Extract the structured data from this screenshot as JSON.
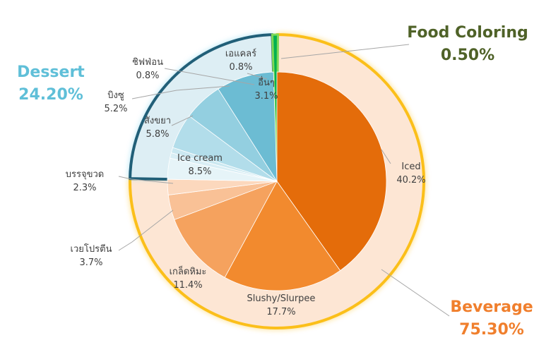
{
  "chart_data": {
    "type": "pie",
    "groups": [
      {
        "name": "Dessert",
        "percent": "24.20%",
        "color": "#4bacc6"
      },
      {
        "name": "Food Coloring",
        "percent": "0.50%",
        "color": "#4f6228"
      },
      {
        "name": "Beverage",
        "percent": "75.30%",
        "color": "#f07f2d"
      }
    ],
    "group_values": [
      24.2,
      0.5,
      75.3
    ],
    "slices": [
      {
        "label": "Iced",
        "value": 40.2,
        "value_label": "40.2%",
        "group": "Beverage",
        "color": "#e46c0a"
      },
      {
        "label": "Slushy/Slurpee",
        "value": 17.7,
        "value_label": "17.7%",
        "group": "Beverage",
        "color": "#f28a2e"
      },
      {
        "label": "เกล็ดหิมะ",
        "value": 11.4,
        "value_label": "11.4%",
        "group": "Beverage",
        "color": "#f5a25e"
      },
      {
        "label": "เวยโปรตีน",
        "value": 3.7,
        "value_label": "3.7%",
        "group": "Beverage",
        "color": "#f9c196"
      },
      {
        "label": "บรรจุขวด",
        "value": 2.3,
        "value_label": "2.3%",
        "group": "Beverage",
        "color": "#fcd8bd"
      },
      {
        "label": "Ice cream",
        "value": 8.5,
        "value_label": "8.5%",
        "group": "Dessert",
        "color": "#6cbcd3"
      },
      {
        "label": "สังขยา",
        "value": 5.8,
        "value_label": "5.8%",
        "group": "Dessert",
        "color": "#93cfe0"
      },
      {
        "label": "บิงซู",
        "value": 5.2,
        "value_label": "5.2%",
        "group": "Dessert",
        "color": "#b2ddea"
      },
      {
        "label": "ชิฟฟ่อน",
        "value": 0.8,
        "value_label": "0.8%",
        "group": "Dessert",
        "color": "#cbe8f1"
      },
      {
        "label": "เอแคลร์",
        "value": 0.8,
        "value_label": "0.8%",
        "group": "Dessert",
        "color": "#d9eef5"
      },
      {
        "label": "อื่นๆ",
        "value": 3.1,
        "value_label": "3.1%",
        "group": "Dessert",
        "color": "#e6f4f8"
      }
    ],
    "food_coloring_fill": "#00b050",
    "beverage_ring_color": "#fbbf1a",
    "beverage_ring_fill": "#fde6d4",
    "dessert_ring_color": "#215f78",
    "dessert_ring_fill": "#ddeef4"
  }
}
